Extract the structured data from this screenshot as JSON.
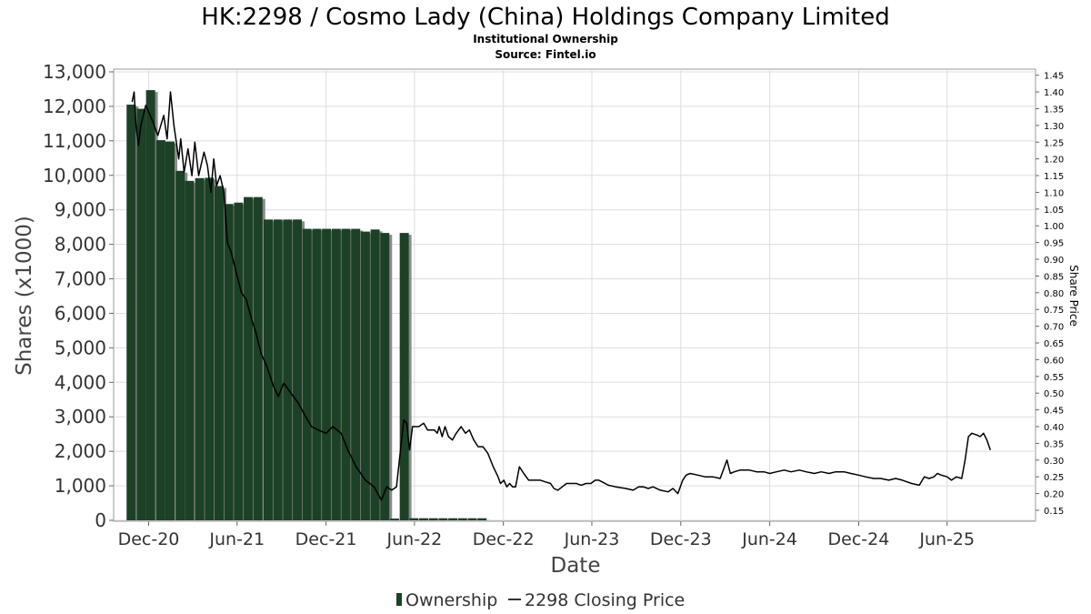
{
  "header": {
    "title": "HK:2298 / Cosmo Lady (China) Holdings Company Limited",
    "subtitle": "Institutional Ownership",
    "source": "Source: Fintel.io"
  },
  "legend": {
    "ownership_label": "Ownership",
    "price_label": "2298 Closing Price"
  },
  "colors": {
    "bar_fill": "#1c4126",
    "bar_shadow": "#8c8c8c",
    "price_line": "#000000",
    "grid": "#dddddd",
    "frame": "#999999"
  },
  "chart_data": {
    "type": "bar",
    "xlabel": "Date",
    "ylabel": "Shares (x1000)",
    "y2label": "Share Price",
    "ylim": [
      0,
      13000
    ],
    "y2lim": [
      0.12,
      1.46
    ],
    "grid": true,
    "legend_position": "bottom",
    "xlim": [
      "2020-09-20",
      "2025-11-30"
    ],
    "x_ticks": [
      {
        "date": "2020-12-01",
        "label": "Dec-20"
      },
      {
        "date": "2021-06-01",
        "label": "Jun-21"
      },
      {
        "date": "2021-12-01",
        "label": "Dec-21"
      },
      {
        "date": "2022-06-01",
        "label": "Jun-22"
      },
      {
        "date": "2022-12-01",
        "label": "Dec-22"
      },
      {
        "date": "2023-06-01",
        "label": "Jun-23"
      },
      {
        "date": "2023-12-01",
        "label": "Dec-23"
      },
      {
        "date": "2024-06-01",
        "label": "Jun-24"
      },
      {
        "date": "2024-12-01",
        "label": "Dec-24"
      },
      {
        "date": "2025-06-01",
        "label": "Jun-25"
      }
    ],
    "y_ticks": [
      {
        "value": 0,
        "label": "0"
      },
      {
        "value": 1000,
        "label": "1,000"
      },
      {
        "value": 2000,
        "label": "2,000"
      },
      {
        "value": 3000,
        "label": "3,000"
      },
      {
        "value": 4000,
        "label": "4,000"
      },
      {
        "value": 5000,
        "label": "5,000"
      },
      {
        "value": 6000,
        "label": "6,000"
      },
      {
        "value": 7000,
        "label": "7,000"
      },
      {
        "value": 8000,
        "label": "8,000"
      },
      {
        "value": 9000,
        "label": "9,000"
      },
      {
        "value": 10000,
        "label": "10,000"
      },
      {
        "value": 11000,
        "label": "11,000"
      },
      {
        "value": 12000,
        "label": "12,000"
      },
      {
        "value": 13000,
        "label": "13,000"
      }
    ],
    "y2_ticks": [
      {
        "value": 0.15,
        "label": "0.15"
      },
      {
        "value": 0.2,
        "label": "0.20"
      },
      {
        "value": 0.25,
        "label": "0.25"
      },
      {
        "value": 0.3,
        "label": "0.30"
      },
      {
        "value": 0.35,
        "label": "0.35"
      },
      {
        "value": 0.4,
        "label": "0.40"
      },
      {
        "value": 0.45,
        "label": "0.45"
      },
      {
        "value": 0.5,
        "label": "0.50"
      },
      {
        "value": 0.55,
        "label": "0.55"
      },
      {
        "value": 0.6,
        "label": "0.60"
      },
      {
        "value": 0.65,
        "label": "0.65"
      },
      {
        "value": 0.7,
        "label": "0.70"
      },
      {
        "value": 0.75,
        "label": "0.75"
      },
      {
        "value": 0.8,
        "label": "0.80"
      },
      {
        "value": 0.85,
        "label": "0.85"
      },
      {
        "value": 0.9,
        "label": "0.90"
      },
      {
        "value": 0.95,
        "label": "0.95"
      },
      {
        "value": 1.0,
        "label": "1.00"
      },
      {
        "value": 1.05,
        "label": "1.05"
      },
      {
        "value": 1.1,
        "label": "1.10"
      },
      {
        "value": 1.15,
        "label": "1.15"
      },
      {
        "value": 1.2,
        "label": "1.20"
      },
      {
        "value": 1.25,
        "label": "1.25"
      },
      {
        "value": 1.3,
        "label": "1.30"
      },
      {
        "value": 1.35,
        "label": "1.35"
      },
      {
        "value": 1.4,
        "label": "1.40"
      },
      {
        "value": 1.45,
        "label": "1.45"
      }
    ],
    "ownership": [
      {
        "date": "2020-10-26",
        "shares": 12050
      },
      {
        "date": "2020-11-16",
        "shares": 11930
      },
      {
        "date": "2020-12-05",
        "shares": 12470
      },
      {
        "date": "2020-12-26",
        "shares": 11020
      },
      {
        "date": "2021-01-14",
        "shares": 10980
      },
      {
        "date": "2021-02-04",
        "shares": 10130
      },
      {
        "date": "2021-02-23",
        "shares": 9840
      },
      {
        "date": "2021-03-16",
        "shares": 9920
      },
      {
        "date": "2021-04-05",
        "shares": 9930
      },
      {
        "date": "2021-04-25",
        "shares": 9690
      },
      {
        "date": "2021-05-15",
        "shares": 9170
      },
      {
        "date": "2021-06-04",
        "shares": 9210
      },
      {
        "date": "2021-06-24",
        "shares": 9370
      },
      {
        "date": "2021-07-14",
        "shares": 9370
      },
      {
        "date": "2021-08-04",
        "shares": 8720
      },
      {
        "date": "2021-08-24",
        "shares": 8720
      },
      {
        "date": "2021-09-13",
        "shares": 8720
      },
      {
        "date": "2021-10-03",
        "shares": 8720
      },
      {
        "date": "2021-10-23",
        "shares": 8450
      },
      {
        "date": "2021-11-12",
        "shares": 8450
      },
      {
        "date": "2021-12-02",
        "shares": 8450
      },
      {
        "date": "2021-12-22",
        "shares": 8450
      },
      {
        "date": "2022-01-11",
        "shares": 8450
      },
      {
        "date": "2022-01-31",
        "shares": 8450
      },
      {
        "date": "2022-02-20",
        "shares": 8370
      },
      {
        "date": "2022-03-12",
        "shares": 8430
      },
      {
        "date": "2022-04-01",
        "shares": 8330
      },
      {
        "date": "2022-04-21",
        "shares": 50
      },
      {
        "date": "2022-05-11",
        "shares": 8330
      },
      {
        "date": "2022-05-31",
        "shares": 60
      },
      {
        "date": "2022-06-20",
        "shares": 60
      },
      {
        "date": "2022-07-10",
        "shares": 60
      },
      {
        "date": "2022-07-30",
        "shares": 60
      },
      {
        "date": "2022-08-19",
        "shares": 60
      },
      {
        "date": "2022-09-08",
        "shares": 60
      },
      {
        "date": "2022-09-28",
        "shares": 60
      },
      {
        "date": "2022-10-18",
        "shares": 60
      }
    ],
    "price": [
      {
        "date": "2020-10-28",
        "close": 1.37
      },
      {
        "date": "2020-11-01",
        "close": 1.4
      },
      {
        "date": "2020-11-05",
        "close": 1.3
      },
      {
        "date": "2020-11-10",
        "close": 1.24
      },
      {
        "date": "2020-11-15",
        "close": 1.3
      },
      {
        "date": "2020-11-25",
        "close": 1.36
      },
      {
        "date": "2020-12-10",
        "close": 1.31
      },
      {
        "date": "2020-12-20",
        "close": 1.27
      },
      {
        "date": "2021-01-01",
        "close": 1.33
      },
      {
        "date": "2021-01-08",
        "close": 1.26
      },
      {
        "date": "2021-01-15",
        "close": 1.4
      },
      {
        "date": "2021-01-22",
        "close": 1.3
      },
      {
        "date": "2021-02-01",
        "close": 1.2
      },
      {
        "date": "2021-02-05",
        "close": 1.26
      },
      {
        "date": "2021-02-12",
        "close": 1.16
      },
      {
        "date": "2021-02-20",
        "close": 1.23
      },
      {
        "date": "2021-02-28",
        "close": 1.15
      },
      {
        "date": "2021-03-06",
        "close": 1.25
      },
      {
        "date": "2021-03-14",
        "close": 1.15
      },
      {
        "date": "2021-03-25",
        "close": 1.22
      },
      {
        "date": "2021-04-01",
        "close": 1.18
      },
      {
        "date": "2021-04-08",
        "close": 1.1
      },
      {
        "date": "2021-04-14",
        "close": 1.2
      },
      {
        "date": "2021-04-20",
        "close": 1.12
      },
      {
        "date": "2021-04-27",
        "close": 1.15
      },
      {
        "date": "2021-05-05",
        "close": 1.1
      },
      {
        "date": "2021-05-12",
        "close": 0.95
      },
      {
        "date": "2021-05-20",
        "close": 0.92
      },
      {
        "date": "2021-06-01",
        "close": 0.85
      },
      {
        "date": "2021-06-10",
        "close": 0.8
      },
      {
        "date": "2021-06-20",
        "close": 0.78
      },
      {
        "date": "2021-07-01",
        "close": 0.72
      },
      {
        "date": "2021-07-10",
        "close": 0.68
      },
      {
        "date": "2021-07-20",
        "close": 0.62
      },
      {
        "date": "2021-08-01",
        "close": 0.58
      },
      {
        "date": "2021-08-15",
        "close": 0.52
      },
      {
        "date": "2021-08-25",
        "close": 0.49
      },
      {
        "date": "2021-09-05",
        "close": 0.53
      },
      {
        "date": "2021-09-15",
        "close": 0.51
      },
      {
        "date": "2021-09-25",
        "close": 0.49
      },
      {
        "date": "2021-10-05",
        "close": 0.47
      },
      {
        "date": "2021-10-20",
        "close": 0.43
      },
      {
        "date": "2021-11-01",
        "close": 0.4
      },
      {
        "date": "2021-11-15",
        "close": 0.39
      },
      {
        "date": "2021-12-01",
        "close": 0.38
      },
      {
        "date": "2021-12-15",
        "close": 0.4
      },
      {
        "date": "2022-01-01",
        "close": 0.38
      },
      {
        "date": "2022-01-15",
        "close": 0.33
      },
      {
        "date": "2022-02-01",
        "close": 0.28
      },
      {
        "date": "2022-02-20",
        "close": 0.24
      },
      {
        "date": "2022-03-10",
        "close": 0.22
      },
      {
        "date": "2022-03-25",
        "close": 0.18
      },
      {
        "date": "2022-04-05",
        "close": 0.22
      },
      {
        "date": "2022-04-15",
        "close": 0.21
      },
      {
        "date": "2022-04-25",
        "close": 0.22
      },
      {
        "date": "2022-05-10",
        "close": 0.42
      },
      {
        "date": "2022-05-16",
        "close": 0.41
      },
      {
        "date": "2022-05-22",
        "close": 0.33
      },
      {
        "date": "2022-05-28",
        "close": 0.4
      },
      {
        "date": "2022-06-10",
        "close": 0.4
      },
      {
        "date": "2022-06-20",
        "close": 0.41
      },
      {
        "date": "2022-06-28",
        "close": 0.39
      },
      {
        "date": "2022-07-05",
        "close": 0.39
      },
      {
        "date": "2022-07-12",
        "close": 0.39
      },
      {
        "date": "2022-07-18",
        "close": 0.38
      },
      {
        "date": "2022-07-22",
        "close": 0.4
      },
      {
        "date": "2022-07-28",
        "close": 0.37
      },
      {
        "date": "2022-08-03",
        "close": 0.4
      },
      {
        "date": "2022-08-10",
        "close": 0.37
      },
      {
        "date": "2022-08-18",
        "close": 0.36
      },
      {
        "date": "2022-08-26",
        "close": 0.38
      },
      {
        "date": "2022-09-05",
        "close": 0.4
      },
      {
        "date": "2022-09-14",
        "close": 0.38
      },
      {
        "date": "2022-09-22",
        "close": 0.39
      },
      {
        "date": "2022-10-01",
        "close": 0.36
      },
      {
        "date": "2022-10-10",
        "close": 0.34
      },
      {
        "date": "2022-10-20",
        "close": 0.34
      },
      {
        "date": "2022-10-30",
        "close": 0.32
      },
      {
        "date": "2022-11-10",
        "close": 0.28
      },
      {
        "date": "2022-11-20",
        "close": 0.25
      },
      {
        "date": "2022-11-25",
        "close": 0.23
      },
      {
        "date": "2022-12-02",
        "close": 0.24
      },
      {
        "date": "2022-12-08",
        "close": 0.22
      },
      {
        "date": "2022-12-14",
        "close": 0.23
      },
      {
        "date": "2022-12-20",
        "close": 0.22
      },
      {
        "date": "2022-12-26",
        "close": 0.22
      },
      {
        "date": "2023-01-03",
        "close": 0.28
      },
      {
        "date": "2023-01-12",
        "close": 0.26
      },
      {
        "date": "2023-01-22",
        "close": 0.24
      },
      {
        "date": "2023-02-03",
        "close": 0.24
      },
      {
        "date": "2023-02-15",
        "close": 0.24
      },
      {
        "date": "2023-02-25",
        "close": 0.235
      },
      {
        "date": "2023-03-08",
        "close": 0.23
      },
      {
        "date": "2023-03-15",
        "close": 0.215
      },
      {
        "date": "2023-03-23",
        "close": 0.21
      },
      {
        "date": "2023-04-01",
        "close": 0.22
      },
      {
        "date": "2023-04-10",
        "close": 0.23
      },
      {
        "date": "2023-04-20",
        "close": 0.23
      },
      {
        "date": "2023-04-30",
        "close": 0.23
      },
      {
        "date": "2023-05-10",
        "close": 0.225
      },
      {
        "date": "2023-05-20",
        "close": 0.23
      },
      {
        "date": "2023-05-30",
        "close": 0.23
      },
      {
        "date": "2023-06-08",
        "close": 0.24
      },
      {
        "date": "2023-06-15",
        "close": 0.24
      },
      {
        "date": "2023-06-22",
        "close": 0.235
      },
      {
        "date": "2023-07-05",
        "close": 0.225
      },
      {
        "date": "2023-07-20",
        "close": 0.22
      },
      {
        "date": "2023-08-10",
        "close": 0.215
      },
      {
        "date": "2023-08-25",
        "close": 0.21
      },
      {
        "date": "2023-09-05",
        "close": 0.22
      },
      {
        "date": "2023-09-15",
        "close": 0.22
      },
      {
        "date": "2023-09-25",
        "close": 0.215
      },
      {
        "date": "2023-10-05",
        "close": 0.22
      },
      {
        "date": "2023-10-20",
        "close": 0.21
      },
      {
        "date": "2023-11-05",
        "close": 0.205
      },
      {
        "date": "2023-11-15",
        "close": 0.215
      },
      {
        "date": "2023-11-25",
        "close": 0.2
      },
      {
        "date": "2023-12-05",
        "close": 0.24
      },
      {
        "date": "2023-12-12",
        "close": 0.255
      },
      {
        "date": "2023-12-20",
        "close": 0.26
      },
      {
        "date": "2024-01-05",
        "close": 0.255
      },
      {
        "date": "2024-01-20",
        "close": 0.25
      },
      {
        "date": "2024-02-05",
        "close": 0.25
      },
      {
        "date": "2024-02-20",
        "close": 0.245
      },
      {
        "date": "2024-03-05",
        "close": 0.3
      },
      {
        "date": "2024-03-12",
        "close": 0.26
      },
      {
        "date": "2024-03-20",
        "close": 0.265
      },
      {
        "date": "2024-04-01",
        "close": 0.27
      },
      {
        "date": "2024-04-20",
        "close": 0.27
      },
      {
        "date": "2024-05-05",
        "close": 0.265
      },
      {
        "date": "2024-05-20",
        "close": 0.265
      },
      {
        "date": "2024-06-01",
        "close": 0.26
      },
      {
        "date": "2024-06-15",
        "close": 0.265
      },
      {
        "date": "2024-07-01",
        "close": 0.27
      },
      {
        "date": "2024-07-15",
        "close": 0.265
      },
      {
        "date": "2024-08-01",
        "close": 0.27
      },
      {
        "date": "2024-08-15",
        "close": 0.265
      },
      {
        "date": "2024-09-01",
        "close": 0.26
      },
      {
        "date": "2024-09-15",
        "close": 0.265
      },
      {
        "date": "2024-10-01",
        "close": 0.26
      },
      {
        "date": "2024-10-15",
        "close": 0.265
      },
      {
        "date": "2024-11-01",
        "close": 0.265
      },
      {
        "date": "2024-11-15",
        "close": 0.26
      },
      {
        "date": "2024-12-01",
        "close": 0.255
      },
      {
        "date": "2024-12-15",
        "close": 0.25
      },
      {
        "date": "2025-01-01",
        "close": 0.245
      },
      {
        "date": "2025-01-15",
        "close": 0.245
      },
      {
        "date": "2025-02-01",
        "close": 0.24
      },
      {
        "date": "2025-02-15",
        "close": 0.245
      },
      {
        "date": "2025-03-01",
        "close": 0.24
      },
      {
        "date": "2025-03-20",
        "close": 0.23
      },
      {
        "date": "2025-04-05",
        "close": 0.225
      },
      {
        "date": "2025-04-15",
        "close": 0.25
      },
      {
        "date": "2025-04-25",
        "close": 0.245
      },
      {
        "date": "2025-05-05",
        "close": 0.25
      },
      {
        "date": "2025-05-12",
        "close": 0.26
      },
      {
        "date": "2025-05-20",
        "close": 0.255
      },
      {
        "date": "2025-06-01",
        "close": 0.25
      },
      {
        "date": "2025-06-10",
        "close": 0.24
      },
      {
        "date": "2025-06-20",
        "close": 0.25
      },
      {
        "date": "2025-07-01",
        "close": 0.245
      },
      {
        "date": "2025-07-08",
        "close": 0.3
      },
      {
        "date": "2025-07-15",
        "close": 0.37
      },
      {
        "date": "2025-07-22",
        "close": 0.38
      },
      {
        "date": "2025-08-01",
        "close": 0.375
      },
      {
        "date": "2025-08-08",
        "close": 0.37
      },
      {
        "date": "2025-08-15",
        "close": 0.38
      },
      {
        "date": "2025-08-22",
        "close": 0.36
      },
      {
        "date": "2025-08-29",
        "close": 0.33
      }
    ]
  }
}
